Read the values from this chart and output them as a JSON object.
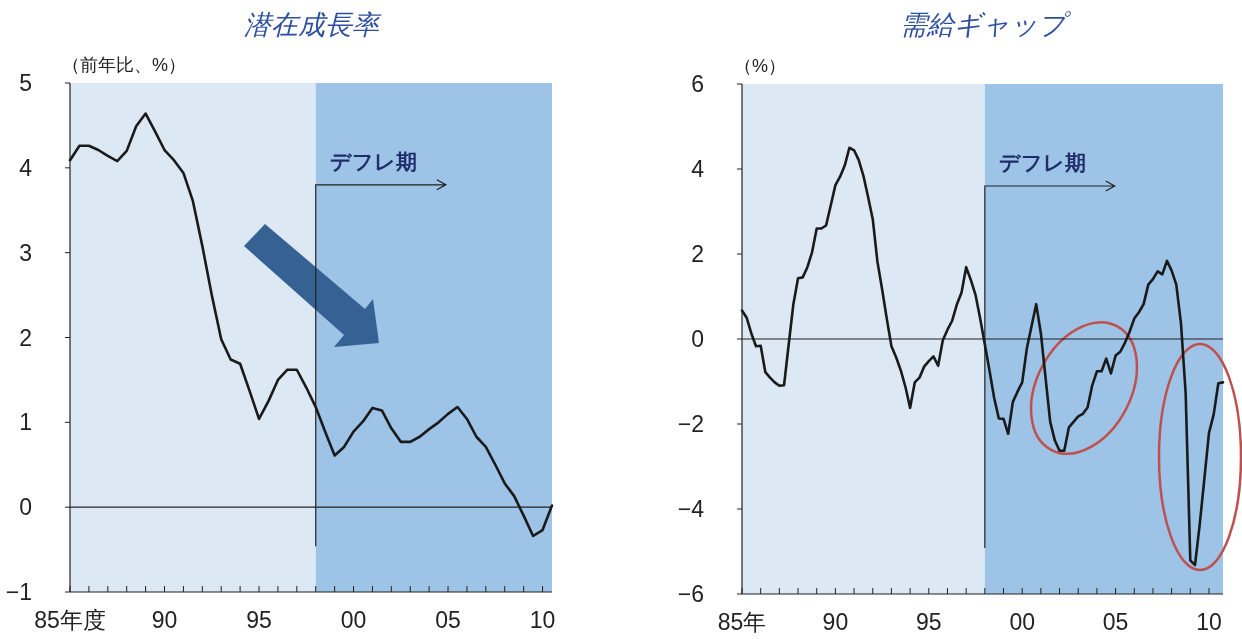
{
  "chart_data": [
    {
      "type": "line",
      "title": "潜在成長率",
      "ylabel": "（前年比、%）",
      "xlim": [
        "1985-01",
        "2010-07"
      ],
      "ylim": [
        -1,
        5
      ],
      "yticks": [
        {
          "value": -1,
          "label": "−1"
        },
        0,
        1,
        2,
        3,
        4,
        5
      ],
      "xticks": [
        {
          "value": "1985",
          "label": "85年度"
        },
        {
          "value": "1986",
          "label": null
        },
        {
          "value": "1987",
          "label": null
        },
        {
          "value": "1988",
          "label": null
        },
        {
          "value": "1989",
          "label": null
        },
        {
          "value": "1990",
          "label": "90"
        },
        {
          "value": "1991",
          "label": null
        },
        {
          "value": "1992",
          "label": null
        },
        {
          "value": "1993",
          "label": null
        },
        {
          "value": "1994",
          "label": null
        },
        {
          "value": "1995",
          "label": "95"
        },
        {
          "value": "1996",
          "label": null
        },
        {
          "value": "1997",
          "label": null
        },
        {
          "value": "1998",
          "label": null
        },
        {
          "value": "1999",
          "label": null
        },
        {
          "value": "2000",
          "label": "00"
        },
        {
          "value": "2001",
          "label": null
        },
        {
          "value": "2002",
          "label": null
        },
        {
          "value": "2003",
          "label": null
        },
        {
          "value": "2004",
          "label": null
        },
        {
          "value": "2005",
          "label": "05"
        },
        {
          "value": "2006",
          "label": null
        },
        {
          "value": "2007",
          "label": null
        },
        {
          "value": "2008",
          "label": null
        },
        {
          "value": "2009",
          "label": null
        },
        {
          "value": "2010",
          "label": "10"
        }
      ],
      "bands": [
        {
          "axis": "x",
          "from": "1985-01",
          "to": "1998-01",
          "color": "#dce9f5"
        },
        {
          "axis": "x",
          "from": "1998-01",
          "to": "2010-07",
          "color": "#9dc3e6"
        }
      ],
      "ref_lines": [
        {
          "axis": "y",
          "value": 0
        },
        {
          "axis": "x",
          "value": "1998-01",
          "label": "デフレ期"
        }
      ],
      "grid": false,
      "marker": "none",
      "line_style": "solid",
      "series": [
        {
          "color": "#1a1a1a",
          "x": [
            "1985-01",
            "1985-07",
            "1986-01",
            "1986-07",
            "1987-01",
            "1987-07",
            "1988-01",
            "1988-07",
            "1989-01",
            "1989-07",
            "1990-01",
            "1990-07",
            "1991-01",
            "1991-07",
            "1992-01",
            "1992-07",
            "1993-01",
            "1993-07",
            "1994-01",
            "1994-07",
            "1995-01",
            "1995-07",
            "1996-01",
            "1996-07",
            "1997-01",
            "1997-07",
            "1998-01",
            "1998-07",
            "1999-01",
            "1999-07",
            "2000-01",
            "2000-07",
            "2001-01",
            "2001-07",
            "2002-01",
            "2002-07",
            "2003-01",
            "2003-07",
            "2004-01",
            "2004-07",
            "2005-01",
            "2005-07",
            "2006-01",
            "2006-07",
            "2007-01",
            "2007-07",
            "2008-01",
            "2008-07",
            "2009-01",
            "2009-07",
            "2010-01",
            "2010-07"
          ],
          "values": [
            4.09,
            4.26,
            4.26,
            4.21,
            4.14,
            4.08,
            4.2,
            4.49,
            4.64,
            4.43,
            4.21,
            4.09,
            3.94,
            3.61,
            3.08,
            2.5,
            1.98,
            1.74,
            1.69,
            1.37,
            1.04,
            1.25,
            1.5,
            1.62,
            1.62,
            1.41,
            1.18,
            0.89,
            0.61,
            0.71,
            0.89,
            1.01,
            1.17,
            1.14,
            0.93,
            0.77,
            0.77,
            0.83,
            0.92,
            1.0,
            1.1,
            1.18,
            1.04,
            0.83,
            0.71,
            0.5,
            0.28,
            0.13,
            -0.1,
            -0.34,
            -0.27,
            0.02
          ]
        }
      ]
    },
    {
      "type": "line",
      "title": "需給ギャップ",
      "ylabel": "（%）",
      "xlim": [
        "1985-01",
        "2010-10"
      ],
      "ylim": [
        -6,
        6
      ],
      "yticks": [
        {
          "value": -6,
          "label": "−6"
        },
        {
          "value": -4,
          "label": "−4"
        },
        {
          "value": -2,
          "label": "−2"
        },
        0,
        2,
        4,
        6
      ],
      "xticks": [
        {
          "value": "1985",
          "label": "85年"
        },
        {
          "value": "1986",
          "label": null
        },
        {
          "value": "1987",
          "label": null
        },
        {
          "value": "1988",
          "label": null
        },
        {
          "value": "1989",
          "label": null
        },
        {
          "value": "1990",
          "label": "90"
        },
        {
          "value": "1991",
          "label": null
        },
        {
          "value": "1992",
          "label": null
        },
        {
          "value": "1993",
          "label": null
        },
        {
          "value": "1994",
          "label": null
        },
        {
          "value": "1995",
          "label": "95"
        },
        {
          "value": "1996",
          "label": null
        },
        {
          "value": "1997",
          "label": null
        },
        {
          "value": "1998",
          "label": null
        },
        {
          "value": "1999",
          "label": null
        },
        {
          "value": "2000",
          "label": "00"
        },
        {
          "value": "2001",
          "label": null
        },
        {
          "value": "2002",
          "label": null
        },
        {
          "value": "2003",
          "label": null
        },
        {
          "value": "2004",
          "label": null
        },
        {
          "value": "2005",
          "label": "05"
        },
        {
          "value": "2006",
          "label": null
        },
        {
          "value": "2007",
          "label": null
        },
        {
          "value": "2008",
          "label": null
        },
        {
          "value": "2009",
          "label": null
        },
        {
          "value": "2010",
          "label": "10"
        }
      ],
      "bands": [
        {
          "axis": "x",
          "from": "1985-01",
          "to": "1998-01",
          "color": "#dce9f5"
        },
        {
          "axis": "x",
          "from": "1998-01",
          "to": "2010-10",
          "color": "#9dc3e6"
        }
      ],
      "ref_lines": [
        {
          "axis": "y",
          "value": 0
        },
        {
          "axis": "x",
          "value": "1998-01",
          "label": "デフレ期"
        }
      ],
      "grid": false,
      "marker": "none",
      "line_style": "solid",
      "series": [
        {
          "color": "#1a1a1a",
          "x": [
            "1985-01",
            "1985-04",
            "1985-07",
            "1985-10",
            "1986-01",
            "1986-04",
            "1986-07",
            "1986-10",
            "1987-01",
            "1987-04",
            "1987-07",
            "1987-10",
            "1988-01",
            "1988-04",
            "1988-07",
            "1988-10",
            "1989-01",
            "1989-04",
            "1989-07",
            "1989-10",
            "1990-01",
            "1990-04",
            "1990-07",
            "1990-10",
            "1991-01",
            "1991-04",
            "1991-07",
            "1991-10",
            "1992-01",
            "1992-04",
            "1992-07",
            "1992-10",
            "1993-01",
            "1993-04",
            "1993-07",
            "1993-10",
            "1994-01",
            "1994-04",
            "1994-07",
            "1994-10",
            "1995-01",
            "1995-04",
            "1995-07",
            "1995-10",
            "1996-01",
            "1996-04",
            "1996-07",
            "1996-10",
            "1997-01",
            "1997-04",
            "1997-07",
            "1997-10",
            "1998-01",
            "1998-04",
            "1998-07",
            "1998-10",
            "1999-01",
            "1999-04",
            "1999-07",
            "1999-10",
            "2000-01",
            "2000-04",
            "2000-07",
            "2000-10",
            "2001-01",
            "2001-04",
            "2001-07",
            "2001-10",
            "2002-01",
            "2002-04",
            "2002-07",
            "2002-10",
            "2003-01",
            "2003-04",
            "2003-07",
            "2003-10",
            "2004-01",
            "2004-04",
            "2004-07",
            "2004-10",
            "2005-01",
            "2005-04",
            "2005-07",
            "2005-10",
            "2006-01",
            "2006-04",
            "2006-07",
            "2006-10",
            "2007-01",
            "2007-04",
            "2007-07",
            "2007-10",
            "2008-01",
            "2008-04",
            "2008-07",
            "2008-10",
            "2009-01",
            "2009-04",
            "2009-07",
            "2009-10",
            "2010-01",
            "2010-04",
            "2010-07",
            "2010-10"
          ],
          "values": [
            0.67,
            0.5,
            0.13,
            -0.17,
            -0.16,
            -0.78,
            -0.91,
            -1.02,
            -1.1,
            -1.09,
            -0.13,
            0.82,
            1.43,
            1.45,
            1.69,
            2.04,
            2.6,
            2.6,
            2.67,
            3.14,
            3.62,
            3.82,
            4.08,
            4.5,
            4.44,
            4.21,
            3.84,
            3.34,
            2.82,
            1.82,
            1.17,
            0.48,
            -0.17,
            -0.43,
            -0.74,
            -1.13,
            -1.62,
            -1.02,
            -0.91,
            -0.65,
            -0.52,
            -0.41,
            -0.63,
            -0.03,
            0.22,
            0.43,
            0.81,
            1.09,
            1.69,
            1.39,
            1.04,
            0.48,
            -0.13,
            -0.74,
            -1.39,
            -1.87,
            -1.88,
            -2.23,
            -1.48,
            -1.24,
            -1.02,
            -0.22,
            0.3,
            0.82,
            0.13,
            -0.91,
            -1.95,
            -2.39,
            -2.63,
            -2.63,
            -2.08,
            -1.95,
            -1.82,
            -1.76,
            -1.61,
            -1.09,
            -0.76,
            -0.76,
            -0.46,
            -0.81,
            -0.39,
            -0.3,
            -0.09,
            0.17,
            0.48,
            0.63,
            0.82,
            1.28,
            1.41,
            1.59,
            1.52,
            1.84,
            1.61,
            1.28,
            0.37,
            -1.26,
            -5.21,
            -5.32,
            -4.38,
            -3.3,
            -2.21,
            -1.78,
            -1.04,
            -1.02
          ]
        }
      ]
    }
  ]
}
